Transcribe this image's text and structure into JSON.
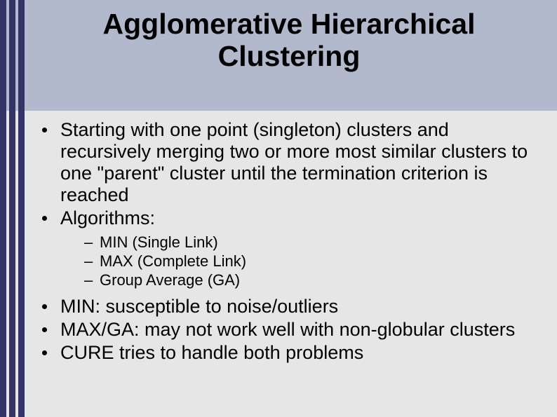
{
  "slide": {
    "title": "Agglomerative Hierarchical Clustering",
    "title_fontsize": 41,
    "title_color": "#000000",
    "header_bg": "#b3b9cc",
    "body_bg": "#e6e6e6",
    "accent_bar_color": "#333366",
    "body_fontsize": 27,
    "sub_fontsize": 22,
    "bullets": {
      "b0": "Starting with one point (singleton) clusters and recursively merging two or more most similar clusters to one \"parent\" cluster until the termination criterion is reached",
      "b1": "Algorithms:",
      "b1_sub": {
        "s0": "MIN (Single Link)",
        "s1": "MAX (Complete Link)",
        "s2": "Group Average (GA)"
      },
      "b2": "MIN: susceptible to noise/outliers",
      "b3": "MAX/GA: may not work well with non-globular clusters",
      "b4": "CURE tries to handle both problems"
    }
  }
}
